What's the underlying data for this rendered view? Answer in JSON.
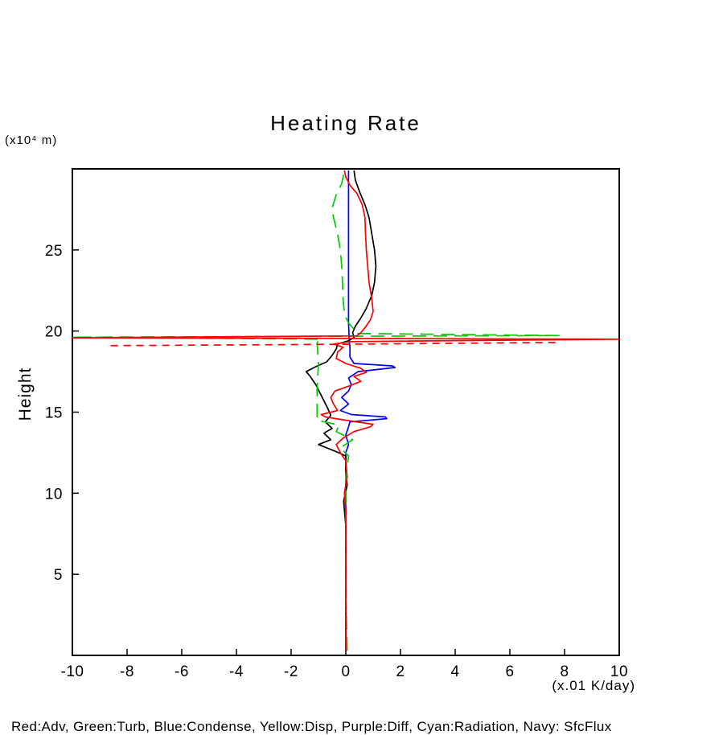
{
  "title": "Heating Rate",
  "y_axis": {
    "label": "Height",
    "unit": "(x10⁴ m)"
  },
  "x_axis": {
    "unit": "(x.01 K/day)"
  },
  "caption": "Red:Adv, Green:Turb, Blue:Condense, Yellow:Disp, Purple:Diff, Cyan:Radiation, Navy: SfcFlux",
  "chart_data": {
    "type": "line",
    "title": "Heating Rate",
    "xlabel": "(x.01 K/day)",
    "ylabel": "Height (x10^4 m)",
    "xlim": [
      -10,
      10
    ],
    "ylim": [
      0,
      30
    ],
    "x_ticks": [
      -10,
      -8,
      -6,
      -4,
      -2,
      0,
      2,
      4,
      6,
      8,
      10
    ],
    "y_ticks": [
      5,
      10,
      15,
      20,
      25
    ],
    "grid": false,
    "legend_position": "bottom-caption",
    "colors": {
      "black": "#000000",
      "red": "#ff0000",
      "green": "#00cc00",
      "blue": "#0000ff"
    },
    "series": [
      {
        "name": "blue-condense",
        "label": "Condense",
        "color": "#0000ff",
        "style": "solid",
        "points": [
          [
            0,
            0.3
          ],
          [
            0,
            4
          ],
          [
            0,
            8
          ],
          [
            0,
            11
          ],
          [
            0,
            12.5
          ],
          [
            0.1,
            13
          ],
          [
            0,
            13.6
          ],
          [
            0.1,
            14.1
          ],
          [
            0.15,
            14.4
          ],
          [
            1.5,
            14.6
          ],
          [
            1.45,
            14.7
          ],
          [
            0.2,
            14.85
          ],
          [
            -0.2,
            15.1
          ],
          [
            0.1,
            15.5
          ],
          [
            -0.15,
            15.9
          ],
          [
            0.1,
            16.3
          ],
          [
            0.2,
            16.7
          ],
          [
            0.1,
            17.1
          ],
          [
            0.45,
            17.5
          ],
          [
            1.8,
            17.75
          ],
          [
            1.7,
            17.85
          ],
          [
            0.3,
            18
          ],
          [
            0.15,
            18.4
          ],
          [
            0.15,
            19
          ],
          [
            0.12,
            19.6
          ],
          [
            0.1,
            20.5
          ],
          [
            0.1,
            22
          ],
          [
            0.1,
            24
          ],
          [
            0.1,
            26
          ],
          [
            0.1,
            28
          ],
          [
            0.1,
            29.9
          ]
        ]
      },
      {
        "name": "black",
        "label": "",
        "color": "#000000",
        "style": "solid",
        "points": [
          [
            0,
            0.3
          ],
          [
            0,
            2
          ],
          [
            0,
            4
          ],
          [
            0,
            6
          ],
          [
            0,
            8
          ],
          [
            -0.08,
            9.5
          ],
          [
            0.05,
            10.5
          ],
          [
            0,
            11.5
          ],
          [
            0,
            12.3
          ],
          [
            -0.4,
            12.6
          ],
          [
            -1.0,
            13.0
          ],
          [
            -0.55,
            13.3
          ],
          [
            -0.8,
            13.7
          ],
          [
            -0.5,
            14.0
          ],
          [
            -0.75,
            14.4
          ],
          [
            -0.55,
            14.8
          ],
          [
            -0.65,
            15.2
          ],
          [
            -0.8,
            15.7
          ],
          [
            -0.95,
            16.2
          ],
          [
            -1.1,
            16.7
          ],
          [
            -1.3,
            17.2
          ],
          [
            -1.45,
            17.5
          ],
          [
            -1.1,
            17.8
          ],
          [
            -0.7,
            18.1
          ],
          [
            -0.5,
            18.5
          ],
          [
            -0.35,
            18.9
          ],
          [
            -0.3,
            19.2
          ],
          [
            0.1,
            19.4
          ],
          [
            0.3,
            19.6
          ],
          [
            0.25,
            19.9
          ],
          [
            0.35,
            20.3
          ],
          [
            0.55,
            20.8
          ],
          [
            0.75,
            21.4
          ],
          [
            0.95,
            22.2
          ],
          [
            1.05,
            23
          ],
          [
            1.1,
            24
          ],
          [
            1.05,
            25
          ],
          [
            0.95,
            26
          ],
          [
            0.85,
            27
          ],
          [
            0.7,
            27.8
          ],
          [
            0.5,
            28.6
          ],
          [
            0.35,
            29.3
          ],
          [
            0.3,
            29.9
          ]
        ]
      },
      {
        "name": "green-turb",
        "label": "Turb",
        "color": "#00cc00",
        "style": "long-dash",
        "points": [
          [
            0.05,
            0.3
          ],
          [
            0,
            4
          ],
          [
            0,
            8
          ],
          [
            0,
            11
          ],
          [
            0.1,
            12.3
          ],
          [
            -0.2,
            12.8
          ],
          [
            0.25,
            13.3
          ],
          [
            -0.35,
            13.8
          ],
          [
            -0.25,
            14.2
          ],
          [
            -1.05,
            14.5
          ],
          [
            -1.05,
            16.5
          ],
          [
            -1.0,
            18
          ],
          [
            -1.05,
            19.3
          ],
          [
            -0.9,
            19.5
          ],
          [
            -10,
            19.62
          ],
          [
            7.8,
            19.72
          ],
          [
            0.35,
            19.85
          ],
          [
            0.3,
            20.1
          ],
          [
            0.1,
            20.5
          ],
          [
            -0.05,
            21
          ],
          [
            -0.1,
            22
          ],
          [
            -0.12,
            23
          ],
          [
            -0.15,
            24
          ],
          [
            -0.2,
            25
          ],
          [
            -0.3,
            26
          ],
          [
            -0.45,
            27
          ],
          [
            -0.5,
            27.6
          ],
          [
            -0.35,
            28.4
          ],
          [
            -0.15,
            29.1
          ],
          [
            -0.05,
            29.9
          ]
        ]
      },
      {
        "name": "red-adv-dashed",
        "label": "Adv",
        "color": "#ff0000",
        "style": "dashed",
        "points": [
          [
            -8.6,
            19.1
          ],
          [
            -0.5,
            19.18
          ],
          [
            7.8,
            19.3
          ]
        ]
      },
      {
        "name": "red-adv",
        "label": "Adv",
        "color": "#ff0000",
        "style": "solid",
        "points": [
          [
            0,
            0.3
          ],
          [
            0,
            3
          ],
          [
            0,
            6
          ],
          [
            0,
            9
          ],
          [
            -0.05,
            10
          ],
          [
            0.05,
            11
          ],
          [
            0,
            12
          ],
          [
            -0.2,
            12.5
          ],
          [
            -0.35,
            13
          ],
          [
            -0.1,
            13.4
          ],
          [
            0.3,
            13.8
          ],
          [
            0.9,
            14.1
          ],
          [
            1.0,
            14.25
          ],
          [
            0.2,
            14.45
          ],
          [
            -0.75,
            14.7
          ],
          [
            -0.9,
            14.85
          ],
          [
            -0.3,
            15.1
          ],
          [
            -0.45,
            15.5
          ],
          [
            -0.55,
            15.9
          ],
          [
            -0.4,
            16.3
          ],
          [
            0.1,
            16.6
          ],
          [
            0.55,
            16.9
          ],
          [
            0.3,
            17.2
          ],
          [
            0.75,
            17.45
          ],
          [
            0.55,
            17.7
          ],
          [
            0,
            18
          ],
          [
            -0.35,
            18.3
          ],
          [
            -0.3,
            18.7
          ],
          [
            -0.1,
            19
          ],
          [
            -0.45,
            19.2
          ],
          [
            0.2,
            19.35
          ],
          [
            10,
            19.5
          ],
          [
            -10,
            19.58
          ],
          [
            0.4,
            19.7
          ],
          [
            0.55,
            19.9
          ],
          [
            0.7,
            20.2
          ],
          [
            0.9,
            20.7
          ],
          [
            1.0,
            21.2
          ],
          [
            0.95,
            22
          ],
          [
            0.85,
            23
          ],
          [
            0.8,
            24
          ],
          [
            0.75,
            25
          ],
          [
            0.72,
            26
          ],
          [
            0.7,
            27
          ],
          [
            0.6,
            27.8
          ],
          [
            0.4,
            28.5
          ],
          [
            0.15,
            29
          ],
          [
            0,
            29.5
          ],
          [
            -0.05,
            29.9
          ]
        ]
      }
    ]
  }
}
